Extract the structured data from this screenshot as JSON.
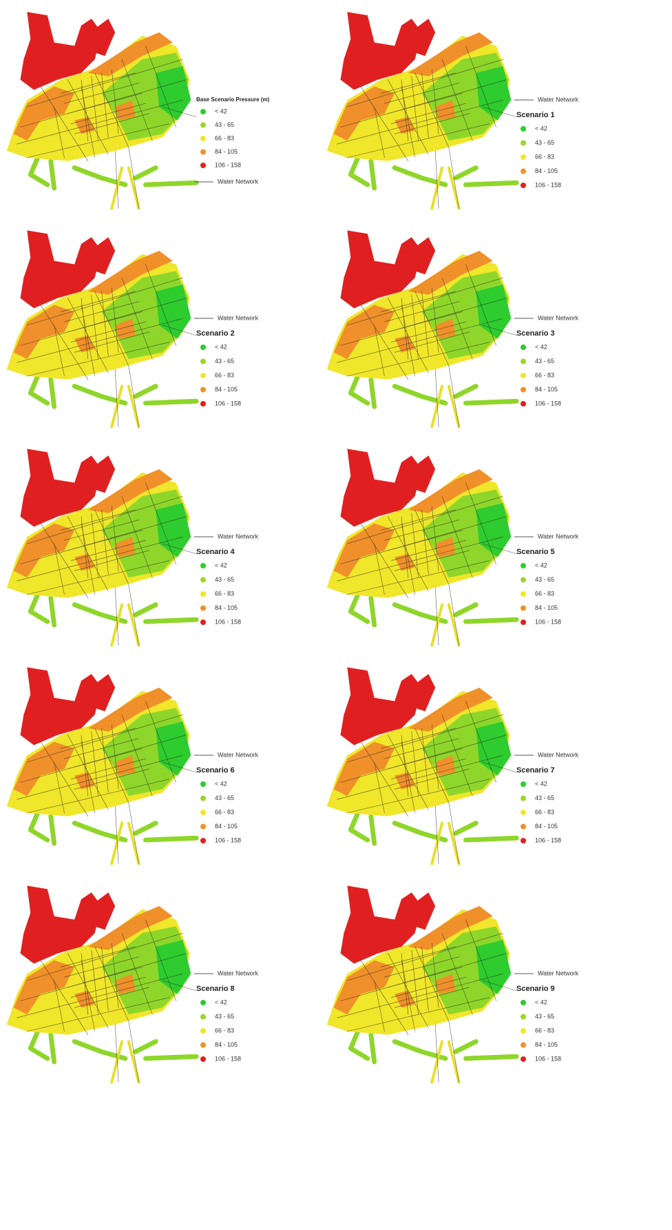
{
  "panels": [
    {
      "title": "Base Scenario Pressure (m)",
      "network_label": "Water Network",
      "legend": [
        {
          "label": "< 42",
          "color": "#2ecc2e"
        },
        {
          "label": "43 - 65",
          "color": "#9bd62a"
        },
        {
          "label": "66 - 83",
          "color": "#f0e62a"
        },
        {
          "label": "84 - 105",
          "color": "#f0902a"
        },
        {
          "label": "106 - 158",
          "color": "#e02020"
        }
      ]
    },
    {
      "title": "Scenario 1",
      "network_label": "Water Network",
      "legend": [
        {
          "label": "< 42",
          "color": "#2ecc2e"
        },
        {
          "label": "43 - 65",
          "color": "#9bd62a"
        },
        {
          "label": "66 - 83",
          "color": "#f0e62a"
        },
        {
          "label": "84 - 105",
          "color": "#f0902a"
        },
        {
          "label": "106 - 158",
          "color": "#e02020"
        }
      ]
    },
    {
      "title": "Scenario 2",
      "network_label": "Water Network",
      "legend": [
        {
          "label": "< 42",
          "color": "#2ecc2e"
        },
        {
          "label": "43 - 65",
          "color": "#9bd62a"
        },
        {
          "label": "66 - 83",
          "color": "#f0e62a"
        },
        {
          "label": "84 - 105",
          "color": "#f0902a"
        },
        {
          "label": "106 - 158",
          "color": "#e02020"
        }
      ]
    },
    {
      "title": "Scenario 3",
      "network_label": "Water Network",
      "legend": [
        {
          "label": "< 42",
          "color": "#2ecc2e"
        },
        {
          "label": "43 - 65",
          "color": "#9bd62a"
        },
        {
          "label": "66 - 83",
          "color": "#f0e62a"
        },
        {
          "label": "84 - 105",
          "color": "#f0902a"
        },
        {
          "label": "106 - 158",
          "color": "#e02020"
        }
      ]
    },
    {
      "title": "Scenario 4",
      "network_label": "Water Network",
      "legend": [
        {
          "label": "< 42",
          "color": "#2ecc2e"
        },
        {
          "label": "43 - 65",
          "color": "#9bd62a"
        },
        {
          "label": "66 - 83",
          "color": "#f0e62a"
        },
        {
          "label": "84 - 105",
          "color": "#f0902a"
        },
        {
          "label": "106 - 158",
          "color": "#e02020"
        }
      ]
    },
    {
      "title": "Scenario 5",
      "network_label": "Water Network",
      "legend": [
        {
          "label": "< 42",
          "color": "#2ecc2e"
        },
        {
          "label": "43 - 65",
          "color": "#9bd62a"
        },
        {
          "label": "66 - 83",
          "color": "#f0e62a"
        },
        {
          "label": "84 - 105",
          "color": "#f0902a"
        },
        {
          "label": "106 - 158",
          "color": "#e02020"
        }
      ]
    },
    {
      "title": "Scenario 6",
      "network_label": "Water Network",
      "legend": [
        {
          "label": "< 42",
          "color": "#2ecc2e"
        },
        {
          "label": "43 - 65",
          "color": "#9bd62a"
        },
        {
          "label": "66 - 83",
          "color": "#f0e62a"
        },
        {
          "label": "84 - 105",
          "color": "#f0902a"
        },
        {
          "label": "106 - 158",
          "color": "#e02020"
        }
      ]
    },
    {
      "title": "Scenario 7",
      "network_label": "Water Network",
      "legend": [
        {
          "label": "< 42",
          "color": "#2ecc2e"
        },
        {
          "label": "43 - 65",
          "color": "#9bd62a"
        },
        {
          "label": "66 - 83",
          "color": "#f0e62a"
        },
        {
          "label": "84 - 105",
          "color": "#f0902a"
        },
        {
          "label": "106 - 158",
          "color": "#e02020"
        }
      ]
    },
    {
      "title": "Scenario 8",
      "network_label": "Water Network",
      "legend": [
        {
          "label": "< 42",
          "color": "#2ecc2e"
        },
        {
          "label": "43 - 65",
          "color": "#9bd62a"
        },
        {
          "label": "66 - 83",
          "color": "#f0e62a"
        },
        {
          "label": "84 - 105",
          "color": "#f0902a"
        },
        {
          "label": "106 - 158",
          "color": "#e02020"
        }
      ]
    },
    {
      "title": "Scenario 9",
      "network_label": "Water Network",
      "legend": [
        {
          "label": "< 42",
          "color": "#2ecc2e"
        },
        {
          "label": "43 - 65",
          "color": "#9bd62a"
        },
        {
          "label": "66 - 83",
          "color": "#f0e62a"
        },
        {
          "label": "84 - 105",
          "color": "#f0902a"
        },
        {
          "label": "106 - 158",
          "color": "#e02020"
        }
      ]
    }
  ]
}
